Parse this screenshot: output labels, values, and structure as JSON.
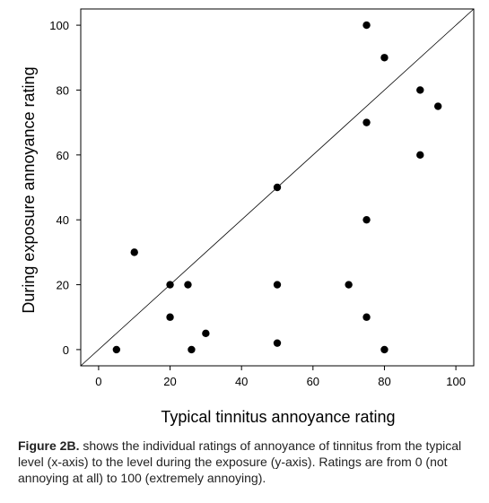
{
  "chart_data": {
    "type": "scatter",
    "xlabel": "Typical tinnitus annoyance rating",
    "ylabel": "During exposure annoyance rating",
    "xlim": [
      -5,
      105
    ],
    "ylim": [
      -5,
      105
    ],
    "xticks": [
      "0",
      "20",
      "40",
      "60",
      "80",
      "100"
    ],
    "yticks": [
      "0",
      "20",
      "40",
      "60",
      "80",
      "100"
    ],
    "reference_line": "identity (y = x)",
    "grid": false,
    "points": [
      {
        "x": 5,
        "y": 0
      },
      {
        "x": 10,
        "y": 30
      },
      {
        "x": 20,
        "y": 20
      },
      {
        "x": 20,
        "y": 10
      },
      {
        "x": 25,
        "y": 20
      },
      {
        "x": 26,
        "y": 0
      },
      {
        "x": 30,
        "y": 5
      },
      {
        "x": 50,
        "y": 50
      },
      {
        "x": 50,
        "y": 20
      },
      {
        "x": 50,
        "y": 2
      },
      {
        "x": 70,
        "y": 20
      },
      {
        "x": 75,
        "y": 100
      },
      {
        "x": 75,
        "y": 70
      },
      {
        "x": 75,
        "y": 40
      },
      {
        "x": 75,
        "y": 10
      },
      {
        "x": 80,
        "y": 90
      },
      {
        "x": 80,
        "y": 0
      },
      {
        "x": 90,
        "y": 80
      },
      {
        "x": 90,
        "y": 60
      },
      {
        "x": 95,
        "y": 75
      }
    ]
  },
  "caption": {
    "label": "Figure 2B.",
    "text": " shows the individual ratings of annoyance of tinnitus from the typical level (x-axis) to the level during the exposure (y-axis). Ratings are from 0 (not annoying at all) to 100 (extremely annoying)."
  }
}
